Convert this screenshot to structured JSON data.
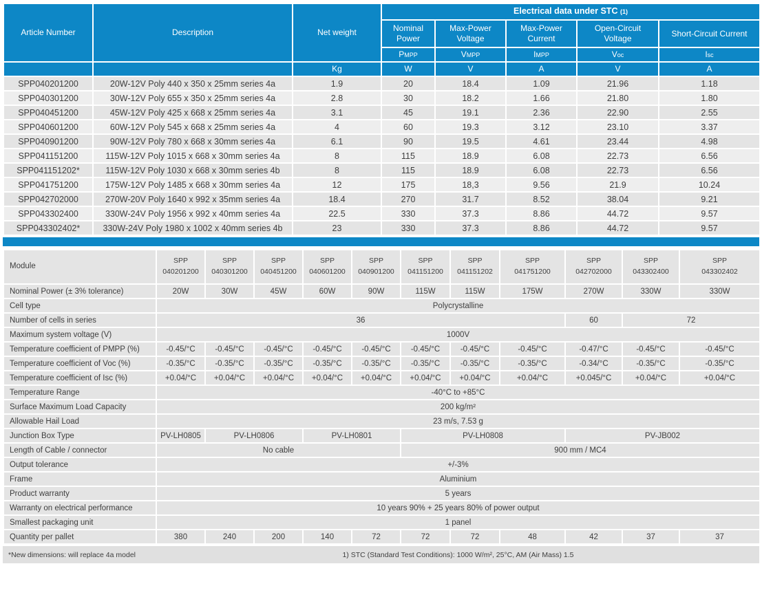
{
  "colors": {
    "header_blue": "#0d87c6",
    "row_gray": "#e4e4e4",
    "row_gray_alt": "#eeeeee",
    "footer_gray": "#e0e0e0",
    "text": "#3e3e3e"
  },
  "top_table": {
    "article_header": "Article Number",
    "description_header": "Description",
    "net_weight_header": "Net weight",
    "net_weight_unit": "Kg",
    "stc_title": "Electrical data under STC",
    "stc_note": "(1)",
    "columns": [
      {
        "name": "Nominal Power",
        "symbol_main": "P",
        "symbol_sub": "MPP",
        "unit": "W"
      },
      {
        "name": "Max-Power Voltage",
        "symbol_main": "V",
        "symbol_sub": "MPP",
        "unit": "V"
      },
      {
        "name": "Max-Power Current",
        "symbol_main": "I",
        "symbol_sub": "MPP",
        "unit": "A"
      },
      {
        "name": "Open-Circuit Voltage",
        "symbol_main": "V",
        "symbol_sub": "oc",
        "unit": "V"
      },
      {
        "name": "Short-Circuit Current",
        "symbol_main": "I",
        "symbol_sub": "sc",
        "unit": "A"
      }
    ],
    "rows": [
      [
        "SPP040201200",
        "20W-12V Poly 440 x 350 x 25mm series 4a",
        "1.9",
        "20",
        "18.4",
        "1.09",
        "21.96",
        "1.18"
      ],
      [
        "SPP040301200",
        "30W-12V Poly 655 x 350 x 25mm series 4a",
        "2.8",
        "30",
        "18.2",
        "1.66",
        "21.80",
        "1.80"
      ],
      [
        "SPP040451200",
        "45W-12V Poly 425 x 668 x 25mm series 4a",
        "3.1",
        "45",
        "19.1",
        "2.36",
        "22.90",
        "2.55"
      ],
      [
        "SPP040601200",
        "60W-12V Poly 545 x 668 x 25mm series 4a",
        "4",
        "60",
        "19.3",
        "3.12",
        "23.10",
        "3.37"
      ],
      [
        "SPP040901200",
        "90W-12V Poly 780 x 668 x 30mm series 4a",
        "6.1",
        "90",
        "19.5",
        "4.61",
        "23.44",
        "4.98"
      ],
      [
        "SPP041151200",
        "115W-12V Poly 1015 x 668 x 30mm series 4a",
        "8",
        "115",
        "18.9",
        "6.08",
        "22.73",
        "6.56"
      ],
      [
        "SPP041151202*",
        "115W-12V Poly 1030 x 668 x 30mm series 4b",
        "8",
        "115",
        "18.9",
        "6.08",
        "22.73",
        "6.56"
      ],
      [
        "SPP041751200",
        "175W-12V Poly 1485 x 668 x 30mm series 4a",
        "12",
        "175",
        "18,3",
        "9.56",
        "21.9",
        "10.24"
      ],
      [
        "SPP042702000",
        "270W-20V Poly 1640 x 992 x 35mm series 4a",
        "18.4",
        "270",
        "31.7",
        "8.52",
        "38.04",
        "9.21"
      ],
      [
        "SPP043302400",
        "330W-24V Poly 1956 x 992 x 40mm series 4a",
        "22.5",
        "330",
        "37.3",
        "8.86",
        "44.72",
        "9.57"
      ],
      [
        "SPP043302402*",
        "330W-24V Poly 1980 x 1002 x 40mm series 4b",
        "23",
        "330",
        "37.3",
        "8.86",
        "44.72",
        "9.57"
      ]
    ]
  },
  "bottom_table": {
    "module_label": "Module",
    "modules": [
      {
        "line1": "SPP",
        "line2": "040201200"
      },
      {
        "line1": "SPP",
        "line2": "040301200"
      },
      {
        "line1": "SPP",
        "line2": "040451200"
      },
      {
        "line1": "SPP",
        "line2": "040601200"
      },
      {
        "line1": "SPP",
        "line2": "040901200"
      },
      {
        "line1": "SPP",
        "line2": "041151200"
      },
      {
        "line1": "SPP",
        "line2": "041151202"
      },
      {
        "line1": "SPP",
        "line2": "041751200"
      },
      {
        "line1": "SPP",
        "line2": "042702000"
      },
      {
        "line1": "SPP",
        "line2": "043302400"
      },
      {
        "line1": "SPP",
        "line2": "043302402"
      }
    ],
    "rows": [
      {
        "label": "Nominal Power  (± 3% tolerance)",
        "cells": [
          {
            "t": "20W"
          },
          {
            "t": "30W"
          },
          {
            "t": "45W"
          },
          {
            "t": "60W"
          },
          {
            "t": "90W"
          },
          {
            "t": "115W"
          },
          {
            "t": "115W"
          },
          {
            "t": "175W"
          },
          {
            "t": "270W"
          },
          {
            "t": "330W"
          },
          {
            "t": "330W"
          }
        ]
      },
      {
        "label": "Cell type",
        "cells": [
          {
            "t": "Polycrystalline",
            "s": 11
          }
        ]
      },
      {
        "label": "Number of cells in series",
        "cells": [
          {
            "t": "36",
            "s": 8
          },
          {
            "t": "60"
          },
          {
            "t": "72",
            "s": 2
          }
        ]
      },
      {
        "label": "Maximum system voltage (V)",
        "cells": [
          {
            "t": "1000V",
            "s": 11
          }
        ]
      },
      {
        "label": "Temperature coefficient of PMPP (%)",
        "cells": [
          {
            "t": "-0.45/°C"
          },
          {
            "t": "-0.45/°C"
          },
          {
            "t": "-0.45/°C"
          },
          {
            "t": "-0.45/°C"
          },
          {
            "t": "-0.45/°C"
          },
          {
            "t": "-0.45/°C"
          },
          {
            "t": "-0.45/°C"
          },
          {
            "t": "-0.45/°C"
          },
          {
            "t": "-0.47/°C"
          },
          {
            "t": "-0.45/°C"
          },
          {
            "t": "-0.45/°C"
          }
        ]
      },
      {
        "label": "Temperature coefficient of Voc (%)",
        "cells": [
          {
            "t": "-0.35/°C"
          },
          {
            "t": "-0.35/°C"
          },
          {
            "t": "-0.35/°C"
          },
          {
            "t": "-0.35/°C"
          },
          {
            "t": "-0.35/°C"
          },
          {
            "t": "-0.35/°C"
          },
          {
            "t": "-0.35/°C"
          },
          {
            "t": "-0.35/°C"
          },
          {
            "t": "-0.34/°C"
          },
          {
            "t": "-0.35/°C"
          },
          {
            "t": "-0.35/°C"
          }
        ]
      },
      {
        "label": "Temperature coefficient of Isc (%)",
        "cells": [
          {
            "t": "+0.04/°C"
          },
          {
            "t": "+0.04/°C"
          },
          {
            "t": "+0.04/°C"
          },
          {
            "t": "+0.04/°C"
          },
          {
            "t": "+0.04/°C"
          },
          {
            "t": "+0.04/°C"
          },
          {
            "t": "+0.04/°C"
          },
          {
            "t": "+0.04/°C"
          },
          {
            "t": "+0.045/°C"
          },
          {
            "t": "+0.04/°C"
          },
          {
            "t": "+0.04/°C"
          }
        ]
      },
      {
        "label": "Temperature Range",
        "cells": [
          {
            "t": "-40°C to +85°C",
            "s": 11
          }
        ]
      },
      {
        "label": "Surface Maximum Load Capacity",
        "cells": [
          {
            "t": "200 kg/m²",
            "s": 11
          }
        ]
      },
      {
        "label": "Allowable Hail Load",
        "cells": [
          {
            "t": "23 m/s, 7.53 g",
            "s": 11
          }
        ]
      },
      {
        "label": "Junction Box Type",
        "cells": [
          {
            "t": "PV-LH0805"
          },
          {
            "t": "PV-LH0806",
            "s": 2
          },
          {
            "t": "PV-LH0801",
            "s": 2
          },
          {
            "t": "PV-LH0808",
            "s": 3
          },
          {
            "t": "PV-JB002",
            "s": 3
          }
        ]
      },
      {
        "label": "Length of Cable / connector",
        "cells": [
          {
            "t": "No cable",
            "s": 5
          },
          {
            "t": "900 mm / MC4",
            "s": 6
          }
        ]
      },
      {
        "label": "Output tolerance",
        "cells": [
          {
            "t": "+/-3%",
            "s": 11
          }
        ]
      },
      {
        "label": "Frame",
        "cells": [
          {
            "t": "Aluminium",
            "s": 11
          }
        ]
      },
      {
        "label": "Product warranty",
        "cells": [
          {
            "t": "5 years",
            "s": 11
          }
        ]
      },
      {
        "label": "Warranty on electrical performance",
        "cells": [
          {
            "t": "10 years 90% + 25 years 80% of power output",
            "s": 11
          }
        ]
      },
      {
        "label": "Smallest packaging unit",
        "cells": [
          {
            "t": "1 panel",
            "s": 11
          }
        ]
      },
      {
        "label": "Quantity per pallet",
        "cells": [
          {
            "t": "380"
          },
          {
            "t": "240"
          },
          {
            "t": "200"
          },
          {
            "t": "140"
          },
          {
            "t": "72"
          },
          {
            "t": "72"
          },
          {
            "t": "72"
          },
          {
            "t": "48"
          },
          {
            "t": "42"
          },
          {
            "t": "37"
          },
          {
            "t": "37"
          }
        ]
      }
    ]
  },
  "footer": {
    "left_note": "*New dimensions: will replace 4a model",
    "right_note": "1) STC (Standard Test Conditions): 1000 W/m², 25°C, AM (Air Mass) 1.5"
  }
}
